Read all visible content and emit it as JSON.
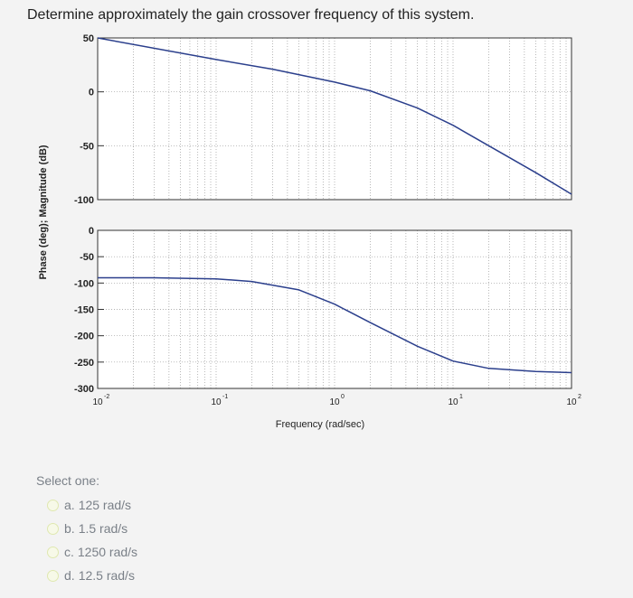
{
  "question": "Determine approximately the gain crossover frequency of this system.",
  "chart_data": {
    "type": "line",
    "title": "",
    "ylabel": "Phase (deg); Magnitude (dB)",
    "xlabel": "Frequency (rad/sec)",
    "xscale": "log",
    "xlim": [
      0.01,
      100
    ],
    "x_ticks": [
      "10",
      "10",
      "10",
      "10",
      "10"
    ],
    "x_tick_exponents": [
      "-2",
      "-1",
      "0",
      "1",
      "2"
    ],
    "grid": true,
    "panels": [
      {
        "name": "magnitude",
        "ylim": [
          -100,
          50
        ],
        "yticks": [
          50,
          0,
          -50,
          -100
        ],
        "x": [
          0.01,
          0.1,
          0.3,
          1,
          2,
          5,
          10,
          20,
          50,
          100
        ],
        "y": [
          50,
          30,
          21,
          9,
          1,
          -15,
          -31,
          -50,
          -75,
          -95
        ]
      },
      {
        "name": "phase",
        "ylim": [
          -300,
          0
        ],
        "yticks": [
          0,
          -50,
          -100,
          -150,
          -200,
          -250,
          -300
        ],
        "x": [
          0.01,
          0.03,
          0.1,
          0.2,
          0.5,
          1,
          2,
          5,
          10,
          20,
          50,
          100
        ],
        "y": [
          -90,
          -90,
          -92,
          -97,
          -113,
          -140,
          -175,
          -220,
          -248,
          -262,
          -268,
          -270
        ]
      }
    ]
  },
  "options": {
    "select_label": "Select one:",
    "items": [
      {
        "letter": "a.",
        "text": "125 rad/s"
      },
      {
        "letter": "b.",
        "text": "1.5 rad/s"
      },
      {
        "letter": "c.",
        "text": "1250 rad/s"
      },
      {
        "letter": "d.",
        "text": "12.5 rad/s"
      }
    ]
  }
}
